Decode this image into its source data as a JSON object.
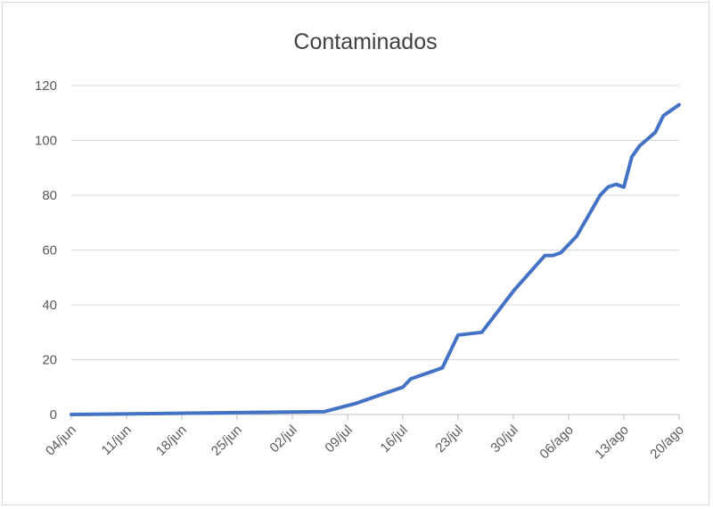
{
  "chart_data": {
    "type": "line",
    "title": "Contaminados",
    "xlabel": "",
    "ylabel": "",
    "ylim": [
      0,
      120
    ],
    "yticks": [
      0,
      20,
      40,
      60,
      80,
      100,
      120
    ],
    "x_tick_labels": [
      "04/jun",
      "11/jun",
      "18/jun",
      "25/jun",
      "02/jul",
      "09/jul",
      "16/jul",
      "23/jul",
      "30/jul",
      "06/ago",
      "13/ago",
      "20/ago"
    ],
    "grid": true,
    "legend": "none",
    "line_color": "#4472c4",
    "series": [
      {
        "x": [
          "04/jun",
          "05/jul",
          "06/jul",
          "10/jul",
          "14/jul",
          "16/jul",
          "17/jul",
          "21/jul",
          "23/jul",
          "26/jul",
          "30/jul",
          "03/ago",
          "04/ago",
          "05/ago",
          "07/ago",
          "10/ago",
          "11/ago",
          "12/ago",
          "13/ago",
          "14/ago",
          "15/ago",
          "17/ago",
          "18/ago",
          "20/ago"
        ],
        "values": [
          0,
          1,
          1,
          4,
          8,
          10,
          13,
          17,
          29,
          30,
          45,
          58,
          58,
          59,
          65,
          80,
          83,
          84,
          83,
          94,
          98,
          103,
          109,
          113
        ]
      }
    ]
  }
}
